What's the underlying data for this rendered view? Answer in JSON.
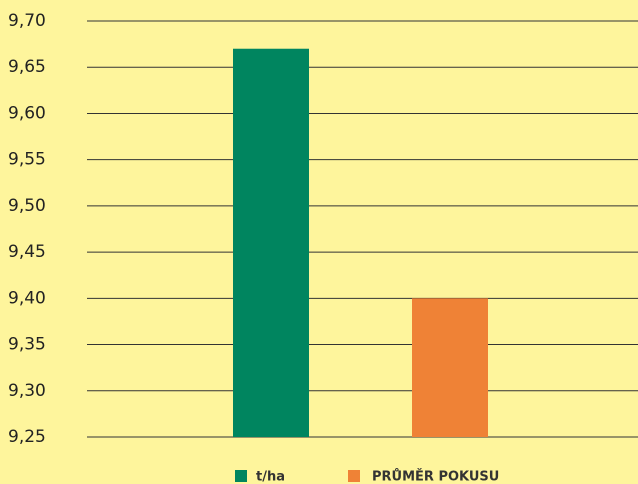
{
  "chart_data": {
    "type": "bar",
    "categories": [
      null
    ],
    "series": [
      {
        "name": "t/ha",
        "color": "#00855f",
        "values": [
          9.67
        ]
      },
      {
        "name": "PRŮMĚR POKUSU",
        "color": "#ef8236",
        "values": [
          9.4
        ]
      }
    ],
    "ylim": [
      9.25,
      9.7
    ],
    "yticks": [
      {
        "value": 9.25,
        "label": "9,25"
      },
      {
        "value": 9.3,
        "label": "9,30"
      },
      {
        "value": 9.35,
        "label": "9,35"
      },
      {
        "value": 9.4,
        "label": "9,40"
      },
      {
        "value": 9.45,
        "label": "9,45"
      },
      {
        "value": 9.5,
        "label": "9,50"
      },
      {
        "value": 9.55,
        "label": "9,55"
      },
      {
        "value": 9.6,
        "label": "9,60"
      },
      {
        "value": 9.65,
        "label": "9,65"
      },
      {
        "value": 9.7,
        "label": "9,70"
      }
    ],
    "grid": true,
    "legend": "bottom"
  }
}
